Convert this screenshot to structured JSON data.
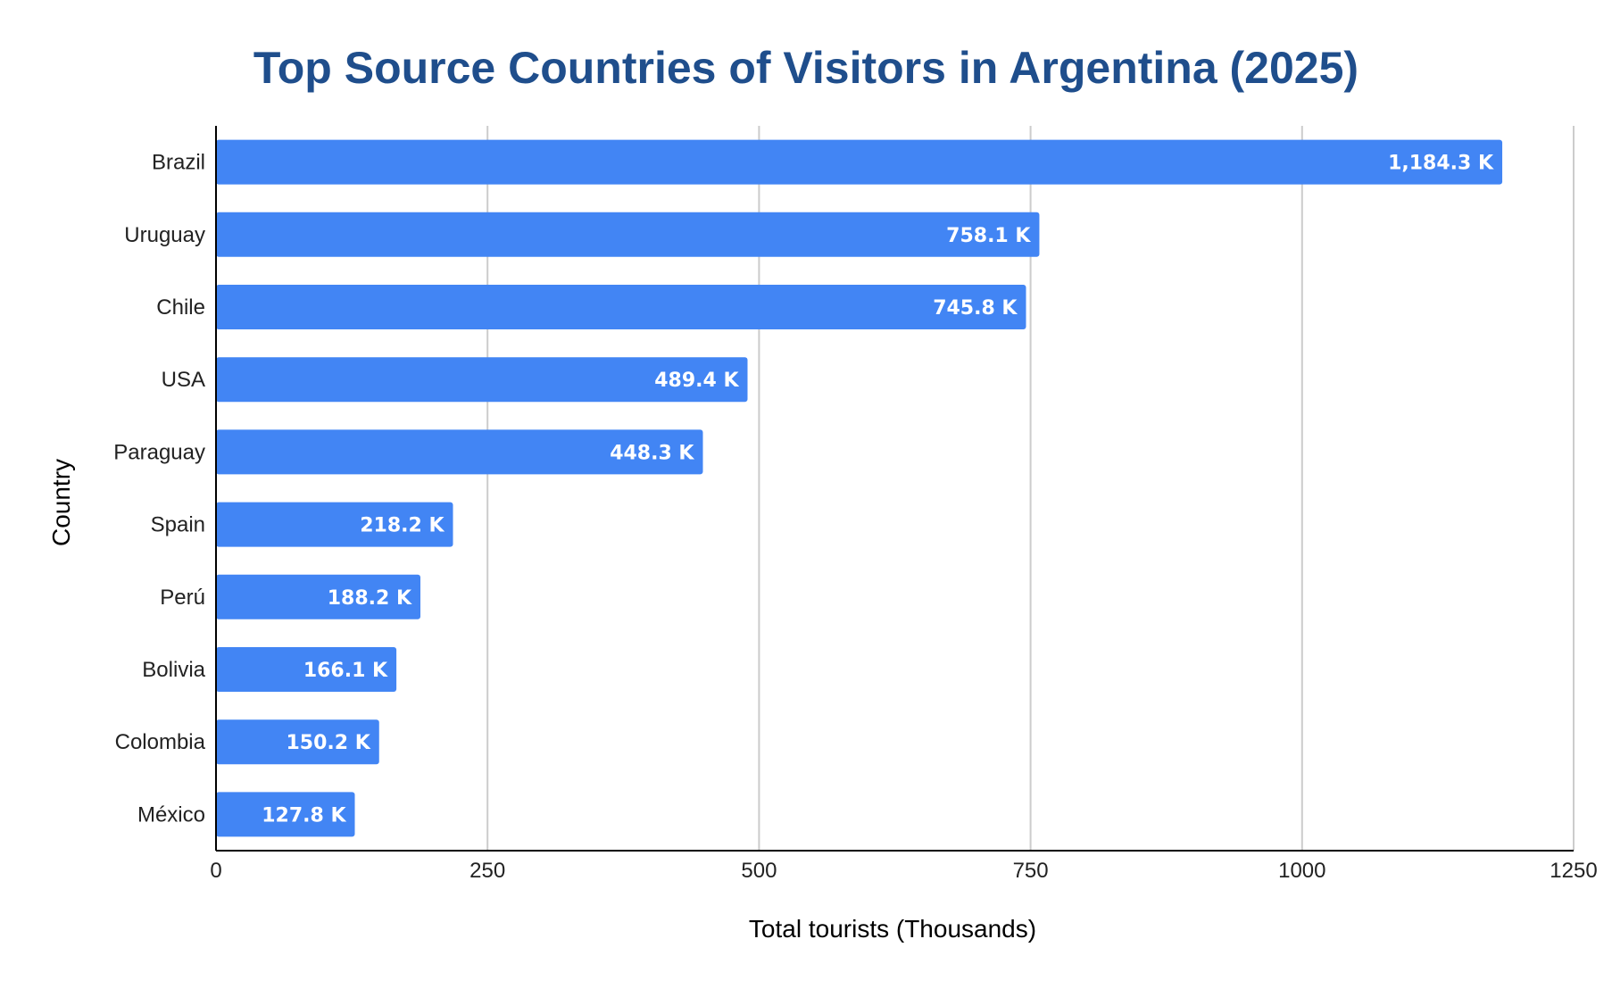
{
  "colors": {
    "bar": "#4285f4",
    "title": "#1f4e8c",
    "grid": "#cccccc",
    "axis": "#000000",
    "value_label": "#ffffff"
  },
  "chart_data": {
    "type": "bar",
    "orientation": "horizontal",
    "title": "Top Source Countries of Visitors in Argentina (2025)",
    "xlabel": "Total tourists (Thousands)",
    "ylabel": "Country",
    "categories": [
      "Brazil",
      "Uruguay",
      "Chile",
      "USA",
      "Paraguay",
      "Spain",
      "Perú",
      "Bolivia",
      "Colombia",
      "México"
    ],
    "values": [
      1184.3,
      758.1,
      745.8,
      489.4,
      448.3,
      218.2,
      188.2,
      166.1,
      150.2,
      127.8
    ],
    "value_labels": [
      "1,184.3 K",
      "758.1 K",
      "745.8 K",
      "489.4 K",
      "448.3 K",
      "218.2 K",
      "188.2 K",
      "166.1 K",
      "150.2 K",
      "127.8 K"
    ],
    "xlim": [
      0,
      1250
    ],
    "xticks": [
      "0",
      "250",
      "500",
      "750",
      "1000",
      "1250"
    ],
    "grid": "vertical",
    "legend": "none"
  }
}
